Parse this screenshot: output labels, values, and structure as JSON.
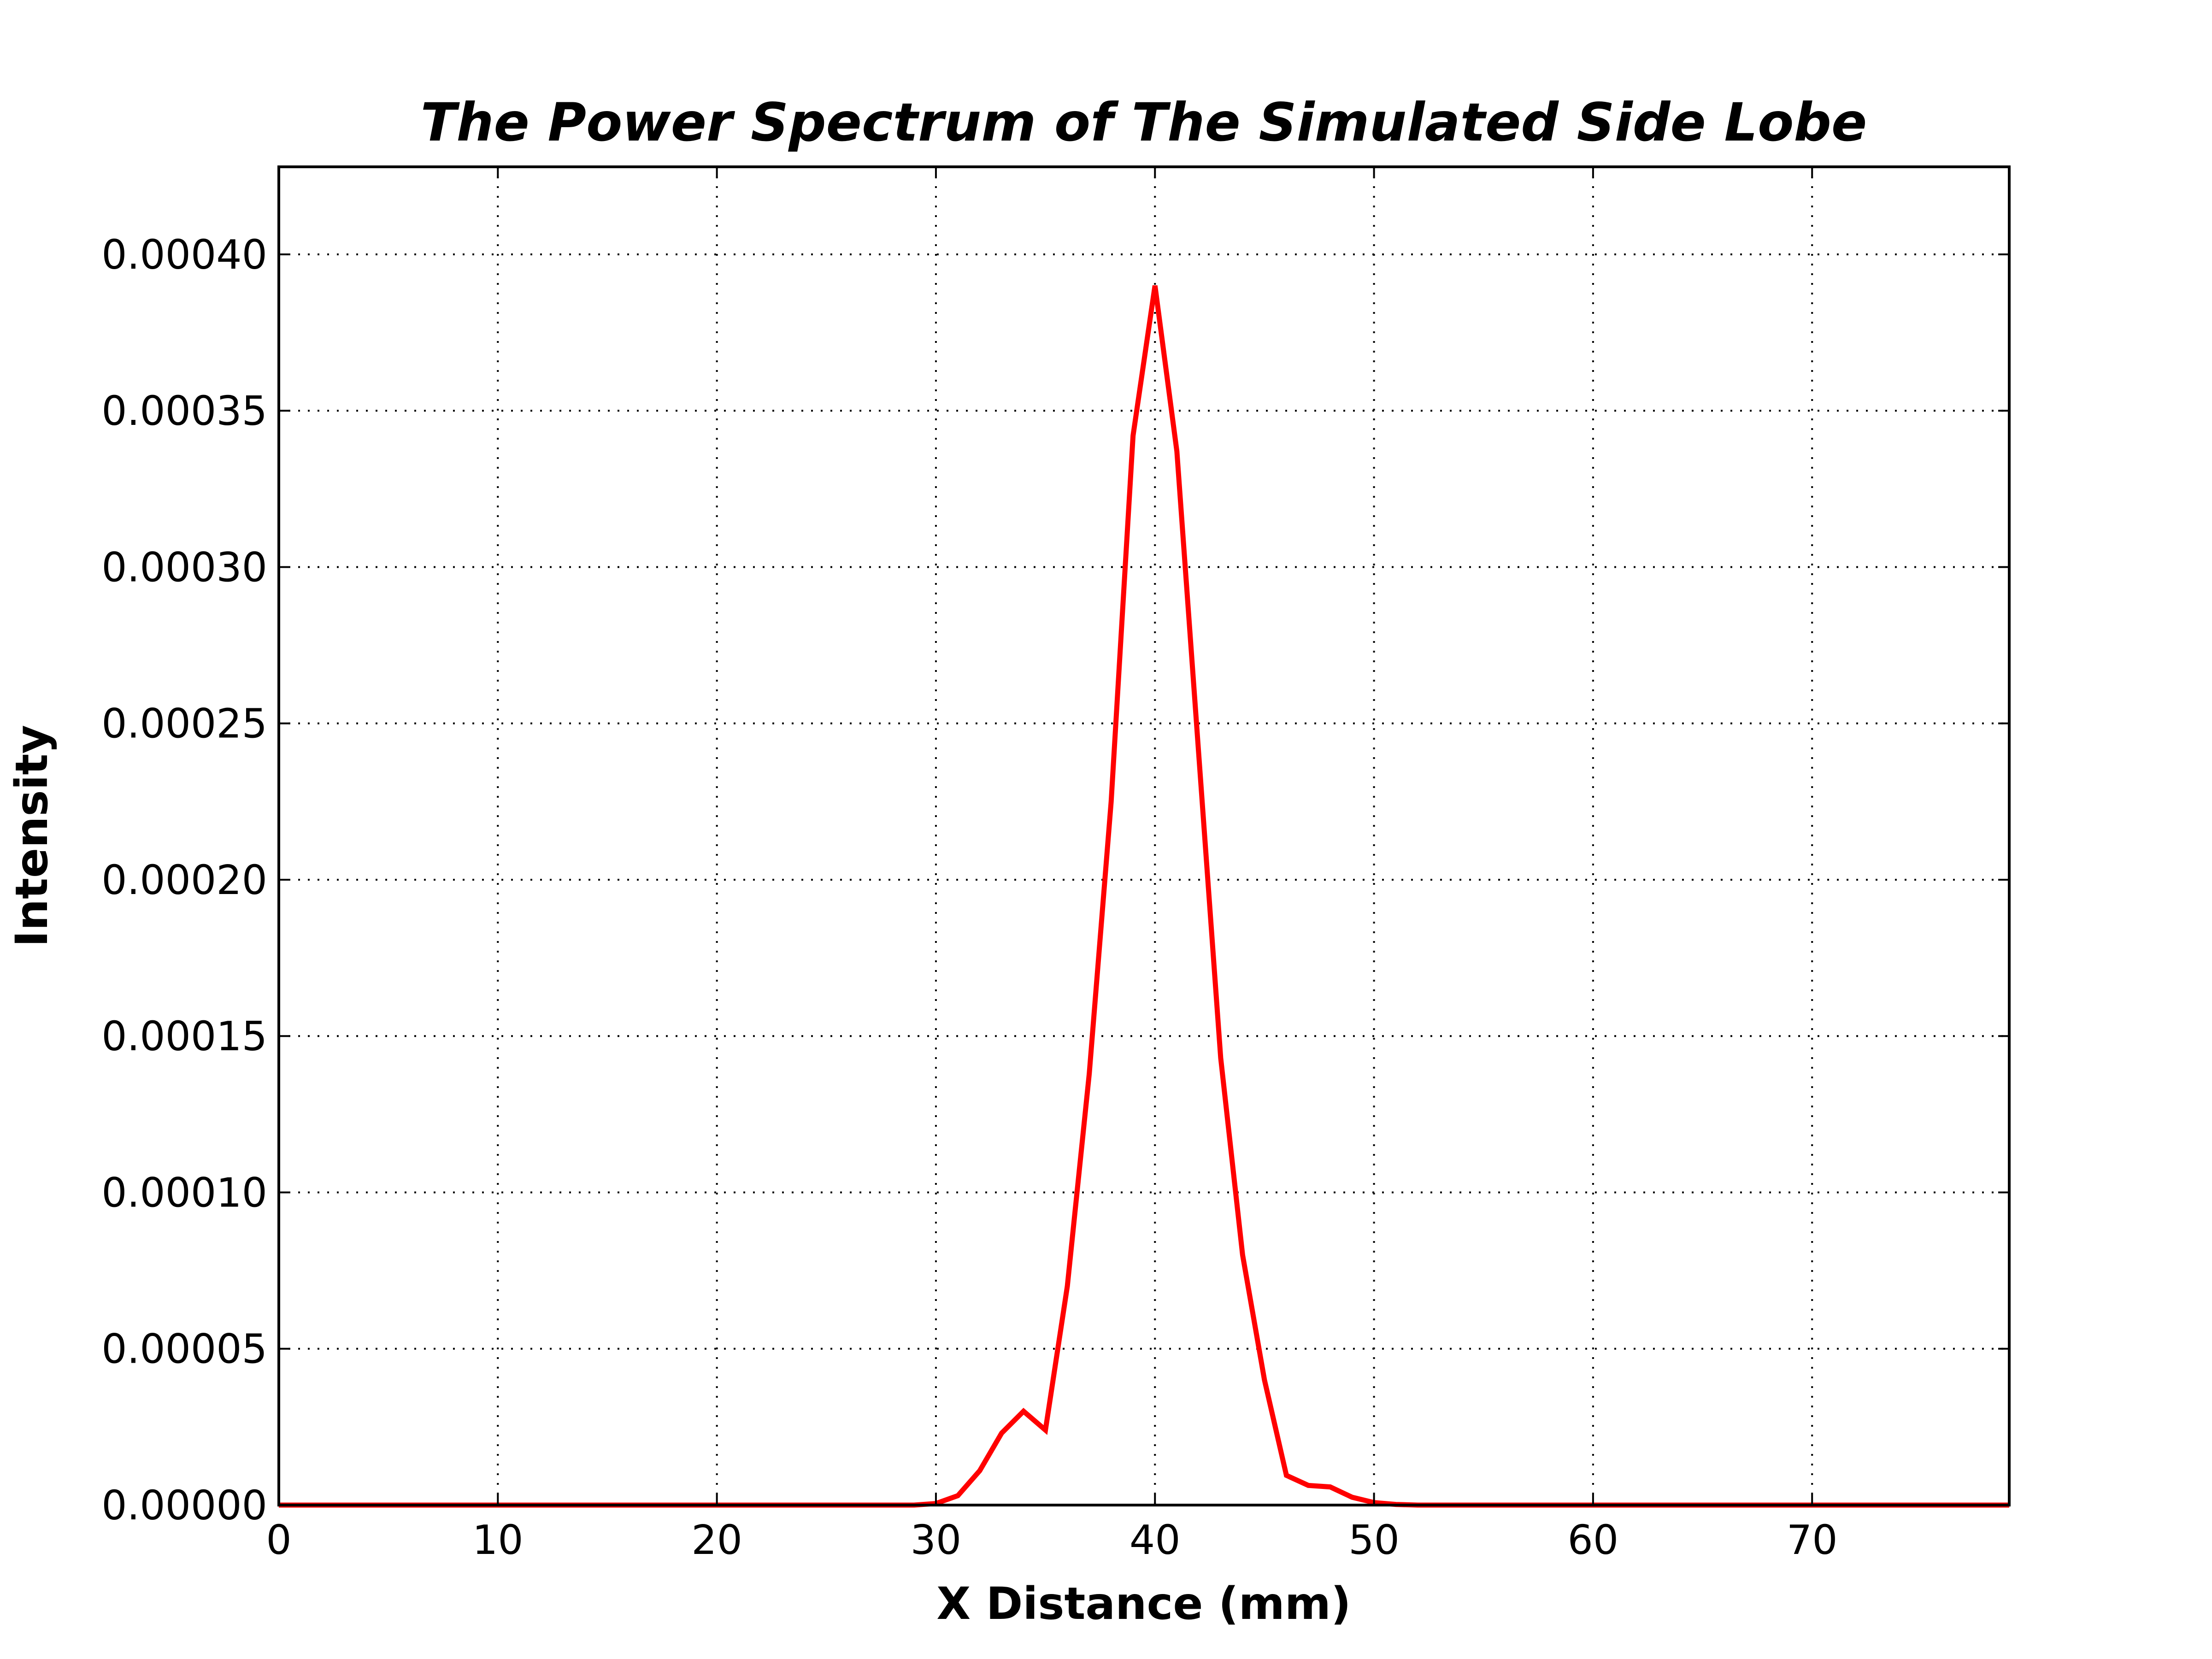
{
  "chart_data": {
    "type": "line",
    "title": "The Power Spectrum of The Simulated Side Lobe",
    "xlabel": "X Distance (mm)",
    "ylabel": "Intensity",
    "xlim": [
      0,
      79
    ],
    "ylim": [
      0,
      0.000428
    ],
    "grid": true,
    "x_ticks": [
      0,
      10,
      20,
      30,
      40,
      50,
      60,
      70
    ],
    "x_tick_labels": [
      "0",
      "10",
      "20",
      "30",
      "40",
      "50",
      "60",
      "70"
    ],
    "y_ticks": [
      0,
      5e-05,
      0.0001,
      0.00015,
      0.0002,
      0.00025,
      0.0003,
      0.00035,
      0.0004
    ],
    "y_tick_labels": [
      "0.00000",
      "0.00005",
      "0.00010",
      "0.00015",
      "0.00020",
      "0.00025",
      "0.00030",
      "0.00035",
      "0.00040"
    ],
    "series": [
      {
        "color": "#ff0000",
        "x": [
          0,
          29,
          30,
          31,
          32,
          33,
          34,
          35,
          36,
          37,
          38,
          39,
          40,
          41,
          42,
          43,
          44,
          45,
          46,
          47,
          48,
          49,
          50,
          51,
          52,
          53,
          79
        ],
        "y": [
          0,
          0,
          5e-07,
          3e-06,
          1.1e-05,
          2.3e-05,
          3e-05,
          2.4e-05,
          7e-05,
          0.000138,
          0.000225,
          0.000342,
          0.00039,
          0.000337,
          0.00024,
          0.000143,
          8e-05,
          4e-05,
          9.5e-06,
          6.3e-06,
          5.8e-06,
          2.5e-06,
          8e-07,
          2e-07,
          0,
          0,
          0
        ]
      }
    ]
  }
}
